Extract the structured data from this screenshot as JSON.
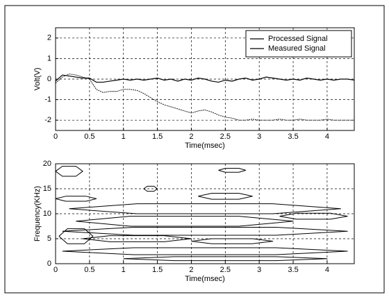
{
  "chart_data": [
    {
      "type": "line",
      "x": [
        0,
        0.1,
        0.2,
        0.3,
        0.4,
        0.5,
        0.6,
        0.7,
        0.8,
        0.9,
        1.0,
        1.1,
        1.2,
        1.3,
        1.4,
        1.5,
        1.6,
        1.7,
        1.8,
        1.9,
        2.0,
        2.1,
        2.2,
        2.3,
        2.4,
        2.5,
        2.6,
        2.7,
        2.8,
        2.9,
        3.0,
        3.1,
        3.2,
        3.3,
        3.4,
        3.5,
        3.6,
        3.7,
        3.8,
        3.9,
        4.0,
        4.1,
        4.2,
        4.3,
        4.4
      ],
      "series": [
        {
          "name": "Processed Signal",
          "color": "#000000",
          "values": [
            -0.1,
            0.2,
            0.15,
            0.1,
            0.05,
            0.05,
            -0.15,
            -0.15,
            -0.1,
            -0.05,
            0,
            -0.05,
            0,
            -0.05,
            0,
            0.05,
            -0.05,
            0,
            -0.1,
            0,
            -0.05,
            0.05,
            0,
            -0.1,
            -0.15,
            -0.05,
            -0.1,
            0,
            0.05,
            -0.05,
            0,
            0.1,
            0.05,
            0,
            -0.05,
            0,
            -0.05,
            0.05,
            0,
            -0.05,
            0,
            -0.05,
            0,
            0,
            -0.05
          ]
        },
        {
          "name": "Measured Signal",
          "color": "#000000",
          "values": [
            -0.2,
            0.1,
            0.25,
            0.2,
            0.1,
            0,
            -0.5,
            -0.65,
            -0.6,
            -0.6,
            -0.5,
            -0.5,
            -0.55,
            -0.7,
            -0.9,
            -1.1,
            -1.25,
            -1.35,
            -1.45,
            -1.55,
            -1.65,
            -1.55,
            -1.5,
            -1.6,
            -1.75,
            -1.85,
            -1.9,
            -2.0,
            -2.0,
            -1.95,
            -2.0,
            -2.0,
            -2.0,
            -1.95,
            -2.0,
            -2.0,
            -1.95,
            -2.0,
            -2.0,
            -2.0,
            -1.95,
            -2.0,
            -2.0,
            -2.0,
            -2.0
          ]
        }
      ],
      "xlabel": "Time(msec)",
      "ylabel": "Volt(V)",
      "xlim": [
        0,
        4.4
      ],
      "ylim": [
        -2.5,
        2.5
      ],
      "xticks": [
        0,
        0.5,
        1,
        1.5,
        2,
        2.5,
        3,
        3.5,
        4
      ],
      "yticks": [
        -2,
        -1,
        0,
        1,
        2
      ],
      "grid": true,
      "legend": "upper right"
    },
    {
      "type": "contour",
      "color": "#000000",
      "contours": [
        {
          "x": [
            2.4,
            2.5,
            2.7,
            2.8,
            2.7,
            2.5,
            2.4
          ],
          "y": [
            18.7,
            19.1,
            19.1,
            18.7,
            18.3,
            18.3,
            18.7
          ]
        },
        {
          "x": [
            1.3,
            1.35,
            1.45,
            1.5,
            1.45,
            1.35,
            1.3
          ],
          "y": [
            15,
            15.5,
            15.5,
            15,
            14.5,
            14.5,
            15
          ]
        },
        {
          "x": [
            0,
            0.15,
            0.45,
            0.6,
            0.45,
            0.15,
            0
          ],
          "y": [
            13,
            13.5,
            13.5,
            13,
            12.5,
            12.5,
            13
          ]
        },
        {
          "x": [
            2.1,
            2.3,
            2.7,
            2.9,
            2.7,
            2.3,
            2.1
          ],
          "y": [
            13.5,
            14.1,
            14.1,
            13.5,
            12.9,
            12.9,
            13.5
          ]
        },
        {
          "x": [
            0.2,
            1.2,
            3.2,
            4.2,
            3.2,
            1.2,
            0.2
          ],
          "y": [
            11,
            12,
            12,
            11,
            10,
            10,
            11
          ]
        },
        {
          "x": [
            0.3,
            1.1,
            2.7,
            3.5,
            2.7,
            1.1,
            0.3
          ],
          "y": [
            8.5,
            9.5,
            9.5,
            8.5,
            7.5,
            7.5,
            8.5
          ]
        },
        {
          "x": [
            0.1,
            1.15,
            3.25,
            4.3,
            3.25,
            1.15,
            0.1
          ],
          "y": [
            6.5,
            7.3,
            7.3,
            6.5,
            5.7,
            5.7,
            6.5
          ]
        },
        {
          "x": [
            0.4,
            0.8,
            1.6,
            2.0,
            1.6,
            0.8,
            0.4
          ],
          "y": [
            5,
            5.6,
            5.6,
            5,
            4.4,
            4.4,
            5
          ]
        },
        {
          "x": [
            2.0,
            2.3,
            2.9,
            3.2,
            2.9,
            2.3,
            2.0
          ],
          "y": [
            4.5,
            5,
            5,
            4.5,
            4,
            4,
            4.5
          ]
        },
        {
          "x": [
            0.05,
            0.175,
            0.425,
            0.55,
            0.425,
            0.175,
            0.05
          ],
          "y": [
            5.5,
            7,
            7,
            5.5,
            4,
            4,
            5.5
          ]
        },
        {
          "x": [
            0.1,
            1.15,
            3.25,
            4.3,
            3.25,
            1.15,
            0.1
          ],
          "y": [
            2.5,
            3.2,
            3.2,
            2.5,
            1.8,
            1.8,
            2.5
          ]
        },
        {
          "x": [
            1.0,
            1.75,
            3.25,
            4.0,
            3.25,
            1.75,
            1.0
          ],
          "y": [
            1,
            1.4,
            1.4,
            1,
            0.6,
            0.6,
            1
          ]
        },
        {
          "x": [
            0,
            0.1,
            0.3,
            0.4,
            0.3,
            0.1,
            0
          ],
          "y": [
            18.5,
            19.5,
            19.5,
            18.5,
            17.5,
            17.5,
            18.5
          ]
        },
        {
          "x": [
            3.3,
            3.55,
            4.05,
            4.3,
            4.05,
            3.55,
            3.3
          ],
          "y": [
            9.5,
            10.1,
            10.1,
            9.5,
            8.9,
            8.9,
            9.5
          ]
        }
      ],
      "xlabel": "Time(msec)",
      "ylabel": "Frequency(KHz)",
      "xlim": [
        0,
        4.4
      ],
      "ylim": [
        0,
        20
      ],
      "xticks": [
        0,
        0.5,
        1,
        1.5,
        2,
        2.5,
        3,
        3.5,
        4
      ],
      "yticks": [
        0,
        5,
        10,
        15,
        20
      ],
      "grid": true
    }
  ]
}
